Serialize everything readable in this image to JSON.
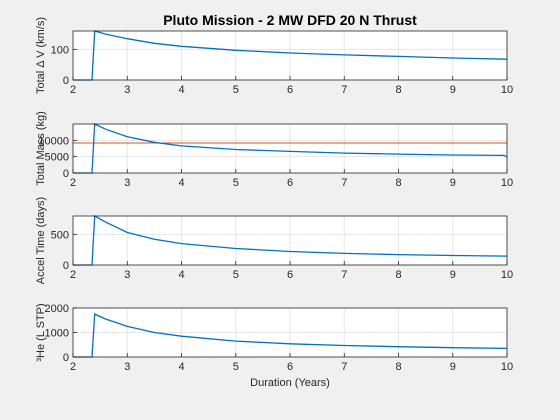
{
  "figure_title": "Pluto Mission - 2 MW DFD 20 N Thrust",
  "chart_data": [
    {
      "type": "line",
      "ylabel": "Total Δ V (km/s)",
      "xlim": [
        2,
        10
      ],
      "ylim": [
        0,
        160
      ],
      "xticks": [
        "2",
        "3",
        "4",
        "5",
        "6",
        "7",
        "8",
        "9",
        "10"
      ],
      "yticks": [
        "0",
        "100"
      ],
      "ytick_values": [
        0,
        100
      ],
      "grid": true,
      "line_color": "#0072bd",
      "x": [
        2.0,
        2.35,
        2.4,
        2.6,
        3.0,
        3.5,
        4.0,
        5.0,
        6.0,
        7.0,
        8.0,
        9.0,
        10.0
      ],
      "y": [
        0,
        0,
        160,
        150,
        135,
        120,
        110,
        97,
        88,
        82,
        77,
        72,
        68
      ]
    },
    {
      "type": "line",
      "ylabel": "Total Mass (kg)",
      "xlim": [
        2,
        10
      ],
      "ylim": [
        0,
        15000
      ],
      "xticks": [
        "2",
        "3",
        "4",
        "5",
        "6",
        "7",
        "8",
        "9",
        "10"
      ],
      "yticks": [
        "0",
        "5000",
        "10000"
      ],
      "ytick_values": [
        0,
        5000,
        10000
      ],
      "grid": true,
      "line_color": "#0072bd",
      "reference_line": {
        "y": 9200,
        "color": "#d95319"
      },
      "x": [
        2.0,
        2.35,
        2.4,
        2.6,
        3.0,
        3.5,
        4.0,
        5.0,
        6.0,
        7.0,
        8.0,
        9.0,
        9.95,
        10.0
      ],
      "y": [
        0,
        0,
        15000,
        13400,
        11100,
        9400,
        8300,
        7200,
        6600,
        6100,
        5800,
        5500,
        5400,
        4900
      ]
    },
    {
      "type": "line",
      "ylabel": "Accel Time (days)",
      "xlim": [
        2,
        10
      ],
      "ylim": [
        0,
        800
      ],
      "xticks": [
        "2",
        "3",
        "4",
        "5",
        "6",
        "7",
        "8",
        "9",
        "10"
      ],
      "yticks": [
        "0",
        "500"
      ],
      "ytick_values": [
        0,
        500
      ],
      "grid": true,
      "line_color": "#0072bd",
      "x": [
        2.0,
        2.35,
        2.4,
        2.6,
        3.0,
        3.5,
        4.0,
        5.0,
        6.0,
        7.0,
        8.0,
        9.0,
        10.0
      ],
      "y": [
        0,
        0,
        800,
        700,
        530,
        420,
        350,
        270,
        220,
        190,
        170,
        155,
        145
      ]
    },
    {
      "type": "line",
      "ylabel": "³He (L STP)",
      "xlim": [
        2,
        10
      ],
      "ylim": [
        0,
        2000
      ],
      "xticks": [
        "2",
        "3",
        "4",
        "5",
        "6",
        "7",
        "8",
        "9",
        "10"
      ],
      "yticks": [
        "0",
        "1000",
        "2000"
      ],
      "ytick_values": [
        0,
        1000,
        2000
      ],
      "grid": true,
      "line_color": "#0072bd",
      "xlabel": "Duration (Years)",
      "x": [
        2.0,
        2.35,
        2.4,
        2.6,
        3.0,
        3.5,
        4.0,
        5.0,
        6.0,
        7.0,
        8.0,
        9.0,
        10.0
      ],
      "y": [
        0,
        0,
        1750,
        1550,
        1250,
        1000,
        850,
        650,
        540,
        470,
        420,
        380,
        350
      ]
    }
  ]
}
